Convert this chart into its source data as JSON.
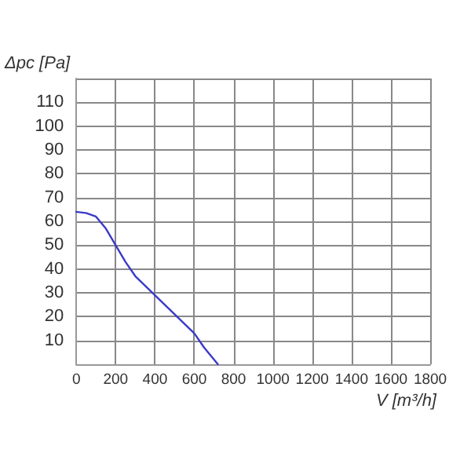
{
  "chart_data": {
    "type": "line",
    "xlabel": "V [m³/h]",
    "ylabel": "Δpc [Pa]",
    "x": [
      0,
      50,
      100,
      150,
      200,
      250,
      300,
      400,
      500,
      600,
      650,
      720
    ],
    "series": [
      {
        "color": "#3a3ac8",
        "values": [
          64,
          63.5,
          62,
          57,
          50,
          43,
          37,
          29,
          21,
          13,
          7,
          0
        ]
      }
    ],
    "xlim": [
      0,
      1800
    ],
    "xticks": [
      0,
      200,
      400,
      600,
      800,
      1000,
      1200,
      1400,
      1600,
      1800
    ],
    "ylim": [
      0,
      120
    ],
    "yticks": [
      {
        "value": 0,
        "label": null
      },
      10,
      20,
      30,
      40,
      50,
      60,
      70,
      80,
      90,
      100,
      110,
      {
        "value": 120,
        "label": null
      }
    ],
    "grid": true,
    "marker": "none",
    "line_style": "solid"
  }
}
